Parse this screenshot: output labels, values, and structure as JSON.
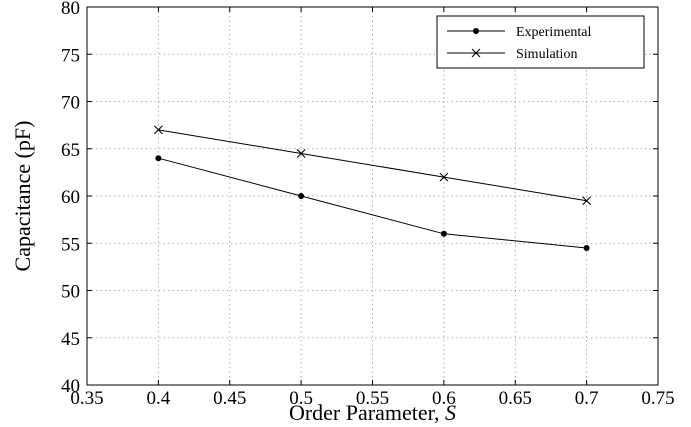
{
  "chart_data": {
    "type": "line",
    "xlabel": "Order Parameter, ",
    "xlabel_symbol": "S",
    "ylabel": "Capacitance (pF)",
    "xlim": [
      0.35,
      0.75
    ],
    "ylim": [
      40,
      80
    ],
    "xticks": [
      "0.35",
      "0.4",
      "0.45",
      "0.5",
      "0.55",
      "0.6",
      "0.65",
      "0.7",
      "0.75"
    ],
    "yticks": [
      "40",
      "45",
      "50",
      "55",
      "60",
      "65",
      "70",
      "75",
      "80"
    ],
    "grid": true,
    "legend_position": "top-right",
    "x": [
      0.4,
      0.5,
      0.6,
      0.7
    ],
    "series": [
      {
        "name": "Experimental",
        "marker": "dot",
        "values": [
          64,
          60,
          56,
          54.5
        ]
      },
      {
        "name": "Simulation",
        "marker": "cross",
        "values": [
          67,
          64.5,
          62,
          59.5
        ]
      }
    ]
  }
}
